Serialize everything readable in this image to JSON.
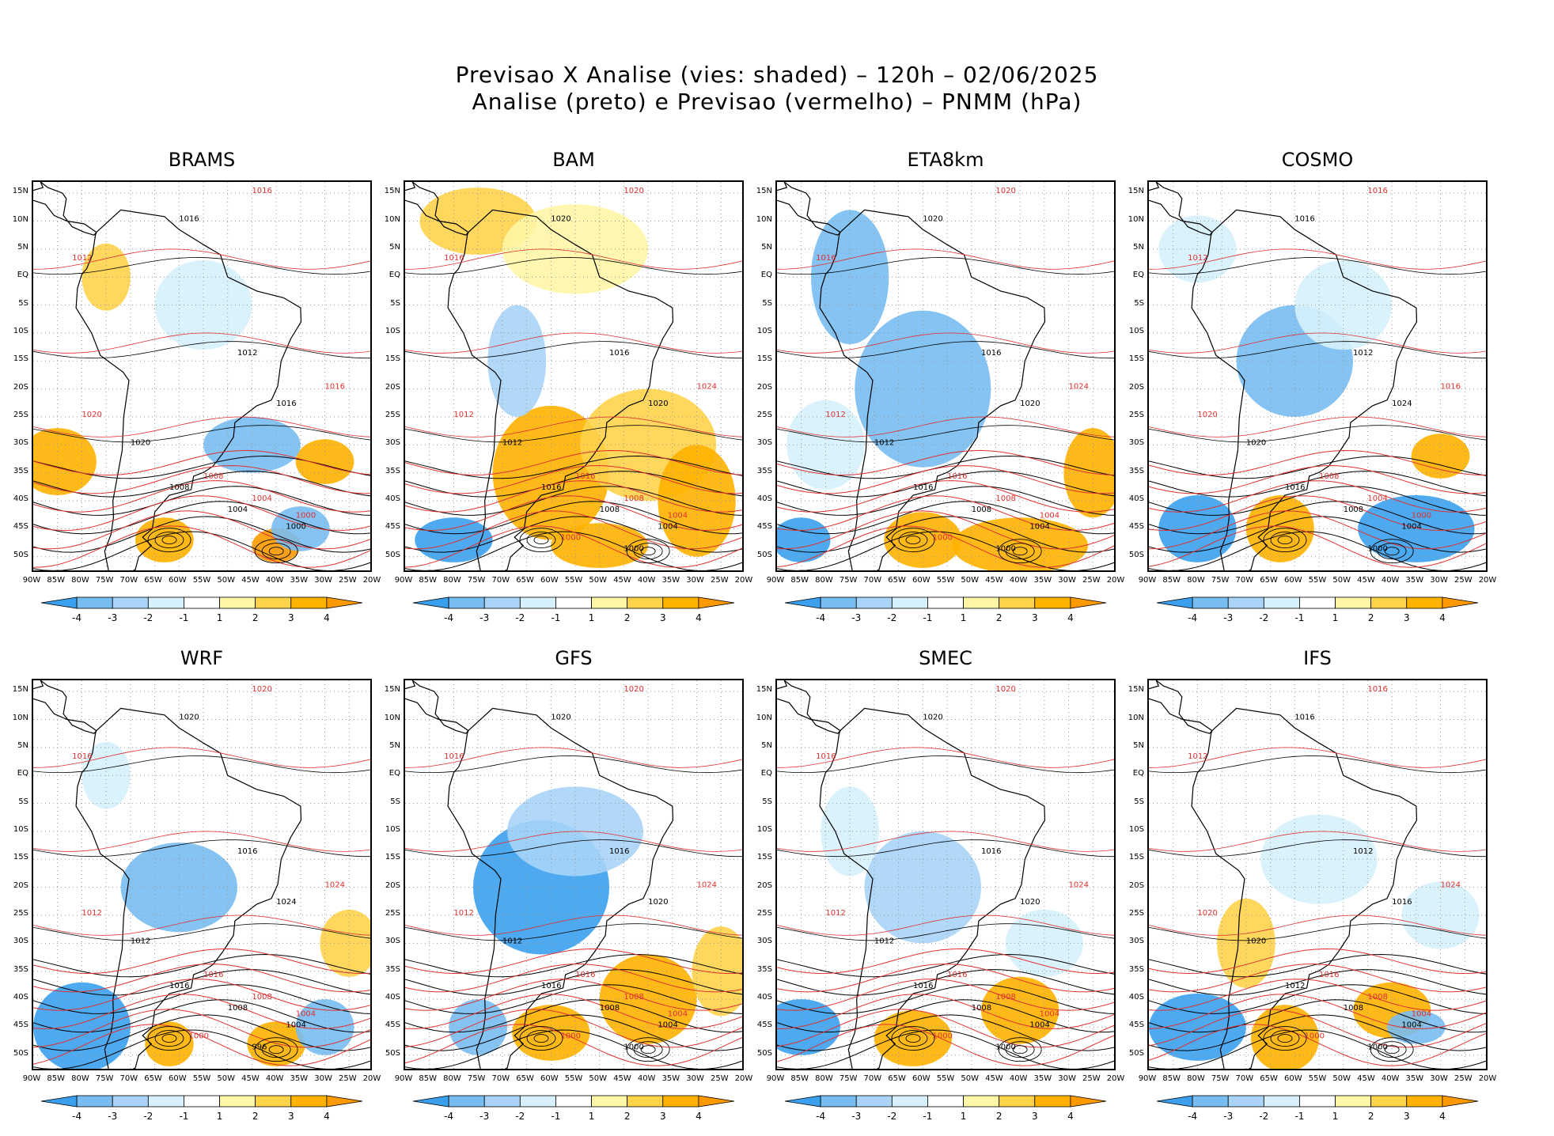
{
  "figure": {
    "title_line1": "Previsao X Analise (vies: shaded) – 120h – 02/06/2025",
    "title_line2": "Analise (preto) e Previsao (vermelho) – PNMM (hPa)"
  },
  "axes": {
    "lat_labels": [
      "15N",
      "10N",
      "5N",
      "EQ",
      "5S",
      "10S",
      "15S",
      "20S",
      "25S",
      "30S",
      "35S",
      "40S",
      "45S",
      "50S"
    ],
    "lon_labels": [
      "90W",
      "85W",
      "80W",
      "75W",
      "70W",
      "65W",
      "60W",
      "55W",
      "50W",
      "45W",
      "40W",
      "35W",
      "30W",
      "25W",
      "20W"
    ]
  },
  "colorbar": {
    "labels": [
      "-4",
      "-3",
      "-2",
      "-1",
      "1",
      "2",
      "3",
      "4"
    ],
    "colors": [
      "#3aa0ee",
      "#78bdf2",
      "#a9d4f7",
      "#d6f1fb",
      "#ffffff",
      "#fff6a6",
      "#ffd34a",
      "#ffb300",
      "#ff9900"
    ]
  },
  "contour_colors": {
    "analysis": "#000000",
    "forecast": "#e03030"
  },
  "panels": [
    {
      "model": "BRAMS",
      "labels_black": [
        "1016",
        "1012",
        "1020",
        "1016",
        "1008",
        "1004",
        "1000"
      ],
      "labels_red": [
        "1016",
        "1012",
        "1020",
        "1016",
        "1008",
        "1004",
        "1000"
      ]
    },
    {
      "model": "BAM",
      "labels_black": [
        "1020",
        "1016",
        "1012",
        "1020",
        "1016",
        "1008",
        "1004",
        "1000"
      ],
      "labels_red": [
        "1020",
        "1016",
        "1012",
        "1024",
        "1016",
        "1008",
        "1004",
        "1000"
      ]
    },
    {
      "model": "ETA8km",
      "labels_black": [
        "1020",
        "1016",
        "1012",
        "1020",
        "1016",
        "1008",
        "1004",
        "1000"
      ],
      "labels_red": [
        "1020",
        "1016",
        "1012",
        "1024",
        "1016",
        "1008",
        "1004",
        "1000"
      ]
    },
    {
      "model": "COSMO",
      "labels_black": [
        "1016",
        "1012",
        "1020",
        "1024",
        "1016",
        "1008",
        "1004",
        "1000"
      ],
      "labels_red": [
        "1016",
        "1012",
        "1020",
        "1016",
        "1008",
        "1004",
        "1000"
      ]
    },
    {
      "model": "WRF",
      "labels_black": [
        "1020",
        "1016",
        "1012",
        "1024",
        "1016",
        "1008",
        "1004",
        "996"
      ],
      "labels_red": [
        "1020",
        "1016",
        "1012",
        "1024",
        "1016",
        "1008",
        "1004",
        "1000"
      ]
    },
    {
      "model": "GFS",
      "labels_black": [
        "1020",
        "1016",
        "1012",
        "1020",
        "1016",
        "1008",
        "1004",
        "1000"
      ],
      "labels_red": [
        "1020",
        "1016",
        "1012",
        "1024",
        "1016",
        "1008",
        "1004",
        "1000"
      ]
    },
    {
      "model": "SMEC",
      "labels_black": [
        "1020",
        "1016",
        "1012",
        "1020",
        "1016",
        "1008",
        "1004",
        "1000"
      ],
      "labels_red": [
        "1020",
        "1016",
        "1012",
        "1024",
        "1016",
        "1008",
        "1004",
        "1000"
      ]
    },
    {
      "model": "IFS",
      "labels_black": [
        "1016",
        "1012",
        "1020",
        "1016",
        "1012",
        "1008",
        "1004",
        "1000"
      ],
      "labels_red": [
        "1016",
        "1012",
        "1020",
        "1024",
        "1016",
        "1008",
        "1004",
        "1000"
      ]
    }
  ]
}
